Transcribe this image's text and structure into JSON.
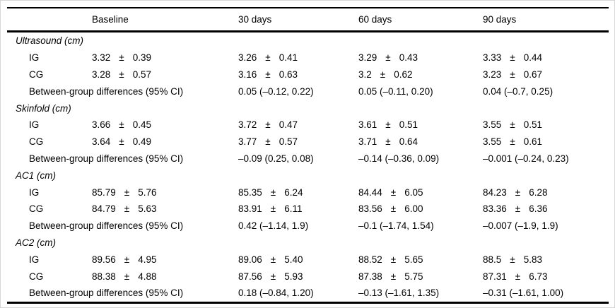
{
  "page": {
    "background": "#ffffff",
    "text_color": "#000000",
    "rule_color": "#000000"
  },
  "table": {
    "pm": "±",
    "diff_label": "Between-group differences (95% CI)",
    "header": {
      "corner": "",
      "columns": [
        "Baseline",
        "30 days",
        "60 days",
        "90 days"
      ]
    },
    "sections": [
      {
        "title": "Ultrasound (cm)",
        "rows": [
          {
            "label": "IG",
            "cells": [
              {
                "mean": "3.32",
                "sd": "0.39"
              },
              {
                "mean": "3.26",
                "sd": "0.41"
              },
              {
                "mean": "3.29",
                "sd": "0.43"
              },
              {
                "mean": "3.33",
                "sd": "0.44"
              }
            ]
          },
          {
            "label": "CG",
            "cells": [
              {
                "mean": "3.28",
                "sd": "0.57"
              },
              {
                "mean": "3.16",
                "sd": "0.63"
              },
              {
                "mean": "3.2",
                "sd": "0.62"
              },
              {
                "mean": "3.23",
                "sd": "0.67"
              }
            ]
          }
        ],
        "diff": [
          "0.05 (–0.12, 0.22)",
          "0.05 (–0.11, 0.20)",
          "0.04 (–0.7, 0.25)"
        ]
      },
      {
        "title": "Skinfold (cm)",
        "rows": [
          {
            "label": "IG",
            "cells": [
              {
                "mean": "3.66",
                "sd": "0.45"
              },
              {
                "mean": "3.72",
                "sd": "0.47"
              },
              {
                "mean": "3.61",
                "sd": "0.51"
              },
              {
                "mean": "3.55",
                "sd": "0.51"
              }
            ]
          },
          {
            "label": "CG",
            "cells": [
              {
                "mean": "3.64",
                "sd": "0.49"
              },
              {
                "mean": "3.77",
                "sd": "0.57"
              },
              {
                "mean": "3.71",
                "sd": "0.64"
              },
              {
                "mean": "3.55",
                "sd": "0.61"
              }
            ]
          }
        ],
        "diff": [
          "–0.09 (0.25, 0.08)",
          "–0.14 (–0.36, 0.09)",
          "–0.001 (–0.24, 0.23)"
        ]
      },
      {
        "title": "AC1 (cm)",
        "rows": [
          {
            "label": "IG",
            "cells": [
              {
                "mean": "85.79",
                "sd": "5.76"
              },
              {
                "mean": "85.35",
                "sd": "6.24"
              },
              {
                "mean": "84.44",
                "sd": "6.05"
              },
              {
                "mean": "84.23",
                "sd": "6.28"
              }
            ]
          },
          {
            "label": "CG",
            "cells": [
              {
                "mean": "84.79",
                "sd": "5.63"
              },
              {
                "mean": "83.91",
                "sd": "6.11"
              },
              {
                "mean": "83.56",
                "sd": "6.00"
              },
              {
                "mean": "83.36",
                "sd": "6.36"
              }
            ]
          }
        ],
        "diff": [
          "0.42 (–1.14, 1.9)",
          "–0.1 (–1.74, 1.54)",
          "–0.007 (–1.9, 1.9)"
        ]
      },
      {
        "title": "AC2 (cm)",
        "rows": [
          {
            "label": "IG",
            "cells": [
              {
                "mean": "89.56",
                "sd": "4.95"
              },
              {
                "mean": "89.06",
                "sd": "5.40"
              },
              {
                "mean": "88.52",
                "sd": "5.65"
              },
              {
                "mean": "88.5",
                "sd": "5.83"
              }
            ]
          },
          {
            "label": "CG",
            "cells": [
              {
                "mean": "88.38",
                "sd": "4.88"
              },
              {
                "mean": "87.56",
                "sd": "5.93"
              },
              {
                "mean": "87.38",
                "sd": "5.75"
              },
              {
                "mean": "87.31",
                "sd": "6.73"
              }
            ]
          }
        ],
        "diff": [
          "0.18 (–0.84, 1.20)",
          "–0.13 (–1.61, 1.35)",
          "–0.31 (–1.61, 1.00)"
        ]
      }
    ]
  }
}
